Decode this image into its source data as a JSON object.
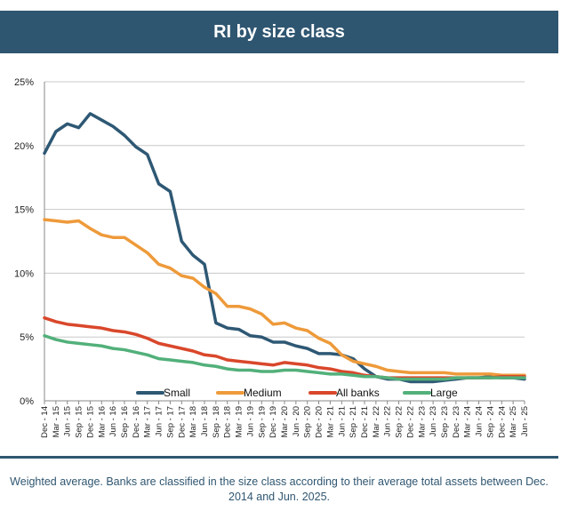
{
  "title": "RI by size class",
  "caption": "Weighted average. Banks are classified in the size class according to their average total assets between Dec. 2014 and Jun. 2025.",
  "chart_data": {
    "type": "line",
    "title": "RI by size class",
    "ylim": [
      0,
      25
    ],
    "y_ticks": [
      "0%",
      "5%",
      "10%",
      "15%",
      "20%",
      "25%"
    ],
    "y_tick_values": [
      0,
      5,
      10,
      15,
      20,
      25
    ],
    "grid": true,
    "legend_position": "bottom-inside",
    "x": [
      "Dec - 14",
      "Mar - 15",
      "Jun - 15",
      "Sep - 15",
      "Dec - 15",
      "Mar - 16",
      "Jun - 16",
      "Sep - 16",
      "Dec - 16",
      "Mar - 17",
      "Jun - 17",
      "Sep - 17",
      "Dec - 17",
      "Mar - 18",
      "Jun - 18",
      "Sep - 18",
      "Dec - 18",
      "Mar - 19",
      "Jun - 19",
      "Sep - 19",
      "Dec - 19",
      "Mar - 20",
      "Jun - 20",
      "Sep - 20",
      "Dec - 20",
      "Mar - 21",
      "Jun - 21",
      "Sep - 21",
      "Dec - 21",
      "Mar - 22",
      "Jun - 22",
      "Sep - 22",
      "Dec - 22",
      "Mar - 23",
      "Jun - 23",
      "Sep - 23",
      "Dec - 23",
      "Mar - 24",
      "Jun - 24",
      "Sep - 24",
      "Dec - 24",
      "Mar - 25",
      "Jun - 25"
    ],
    "series": [
      {
        "name": "Small",
        "color": "#2e5874",
        "values": [
          19.4,
          21.1,
          21.7,
          21.4,
          22.5,
          22.0,
          21.5,
          20.8,
          19.9,
          19.3,
          17.0,
          16.4,
          12.5,
          11.4,
          10.7,
          6.1,
          5.7,
          5.6,
          5.1,
          5.0,
          4.6,
          4.6,
          4.3,
          4.1,
          3.7,
          3.7,
          3.6,
          3.3,
          2.5,
          1.9,
          1.7,
          1.7,
          1.5,
          1.5,
          1.5,
          1.6,
          1.7,
          1.8,
          1.8,
          1.9,
          1.8,
          1.8,
          1.7
        ]
      },
      {
        "name": "Medium",
        "color": "#ee9a3a",
        "values": [
          14.2,
          14.1,
          14.0,
          14.1,
          13.5,
          13.0,
          12.8,
          12.8,
          12.2,
          11.6,
          10.7,
          10.4,
          9.8,
          9.6,
          8.9,
          8.4,
          7.4,
          7.4,
          7.2,
          6.8,
          6.0,
          6.1,
          5.7,
          5.5,
          4.9,
          4.5,
          3.6,
          3.1,
          2.9,
          2.7,
          2.4,
          2.3,
          2.2,
          2.2,
          2.2,
          2.2,
          2.1,
          2.1,
          2.1,
          2.1,
          2.0,
          2.0,
          2.0
        ]
      },
      {
        "name": "All banks",
        "color": "#d9472b",
        "values": [
          6.5,
          6.2,
          6.0,
          5.9,
          5.8,
          5.7,
          5.5,
          5.4,
          5.2,
          4.9,
          4.5,
          4.3,
          4.1,
          3.9,
          3.6,
          3.5,
          3.2,
          3.1,
          3.0,
          2.9,
          2.8,
          3.0,
          2.9,
          2.8,
          2.6,
          2.5,
          2.3,
          2.2,
          2.0,
          1.9,
          1.8,
          1.8,
          1.8,
          1.8,
          1.8,
          1.8,
          1.8,
          1.8,
          1.8,
          1.8,
          1.9,
          1.9,
          1.9
        ]
      },
      {
        "name": "Large",
        "color": "#52b07a",
        "values": [
          5.1,
          4.8,
          4.6,
          4.5,
          4.4,
          4.3,
          4.1,
          4.0,
          3.8,
          3.6,
          3.3,
          3.2,
          3.1,
          3.0,
          2.8,
          2.7,
          2.5,
          2.4,
          2.4,
          2.3,
          2.3,
          2.4,
          2.4,
          2.3,
          2.2,
          2.1,
          2.1,
          2.0,
          1.9,
          1.9,
          1.8,
          1.7,
          1.7,
          1.7,
          1.7,
          1.7,
          1.8,
          1.8,
          1.8,
          1.8,
          1.8,
          1.8,
          1.8
        ]
      }
    ]
  }
}
